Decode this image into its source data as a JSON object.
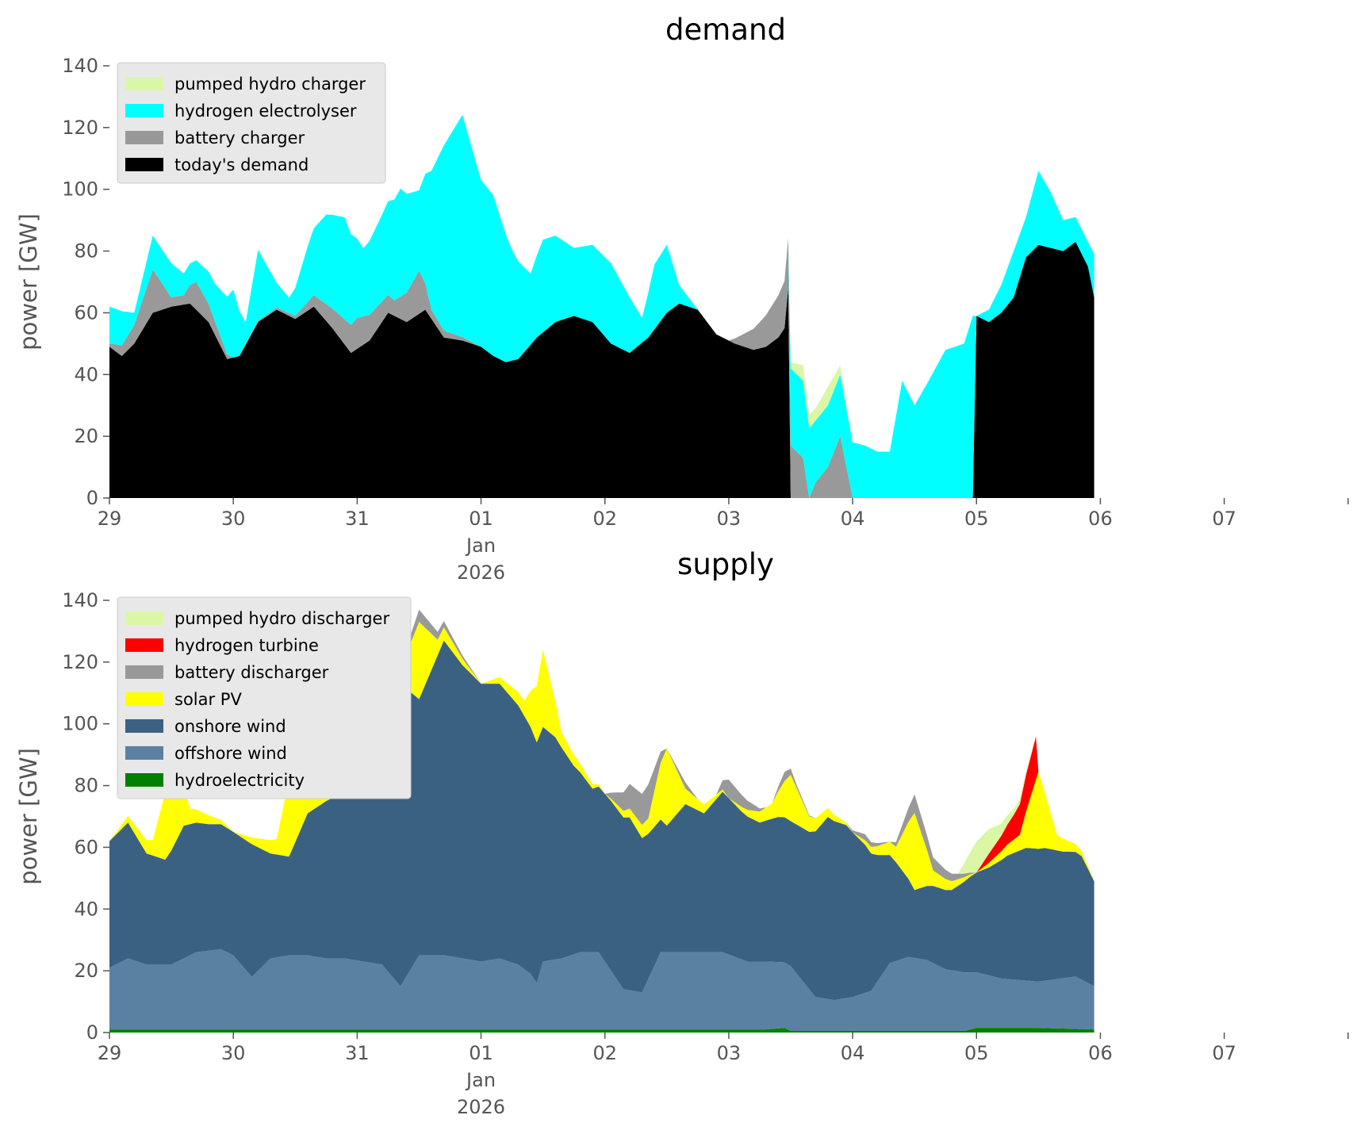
{
  "colors": {
    "pumped_hydro": "#daf7a6",
    "hydrogen_electrolyser": "#00ffff",
    "hydrogen_turbine": "#ff0000",
    "battery": "#999999",
    "demand": "#000000",
    "solar": "#ffff00",
    "onshore": "#3b6182",
    "offshore": "#5b81a2",
    "hydro": "#008000",
    "legend_bg": "#e8e8e8"
  },
  "x_tick_labels": [
    "29",
    "30",
    "31",
    "01",
    "02",
    "03",
    "04",
    "05",
    "06",
    "07"
  ],
  "x_tick_sublabels": {
    "month": "Jan",
    "year": "2026"
  },
  "chart_data": [
    {
      "type": "area",
      "title": "demand",
      "ylabel": "power [GW]",
      "xlabel": "",
      "ylim": [
        0,
        140
      ],
      "yticks": [
        0,
        20,
        40,
        60,
        80,
        100,
        120,
        140
      ],
      "xlim_days": [
        0,
        9.95
      ],
      "x_unit": "days from 29 Dec 2025",
      "grid": false,
      "legend_position": "top-left",
      "stacked": true,
      "series": [
        {
          "name": "pumped hydro charger",
          "x": [
            5.48,
            5.5,
            5.6,
            5.7,
            5.8,
            5.9,
            6.0
          ],
          "values": [
            0,
            2,
            5,
            4,
            6,
            3,
            0
          ]
        },
        {
          "name": "hydrogen electrolyser",
          "x": [
            0,
            0.1,
            0.2,
            0.35,
            0.5,
            0.6,
            0.7,
            0.85,
            1.0,
            1.1,
            1.2,
            1.35,
            1.45,
            1.5,
            1.6,
            1.75,
            1.9,
            2.05,
            2.2,
            2.35,
            2.5,
            2.6,
            2.7,
            2.85,
            3.0,
            3.1,
            3.25,
            3.4,
            3.5,
            3.6,
            3.75,
            3.9,
            4.05,
            4.2,
            4.3,
            4.4,
            4.5,
            4.6,
            4.75,
            4.9,
            5.05,
            5.2,
            5.4,
            5.48,
            5.5,
            5.6,
            5.7,
            5.8,
            5.9,
            6.0,
            6.1,
            6.2,
            6.3,
            6.4,
            6.5,
            6.6,
            6.75,
            6.9,
            6.97,
            7.0,
            7.1,
            7.2,
            7.3,
            7.4,
            7.5,
            7.6,
            7.7,
            7.8,
            7.9,
            7.95
          ],
          "values": [
            12,
            11,
            4,
            11,
            11,
            7,
            7,
            12,
            22,
            7,
            23,
            8,
            5,
            9,
            18,
            29,
            33,
            22,
            28,
            35,
            26,
            45,
            60,
            72,
            54,
            52,
            36,
            23,
            30,
            28,
            22,
            25,
            26,
            18,
            8,
            21,
            22,
            6,
            0,
            0,
            0,
            0,
            0,
            0,
            25,
            25,
            20,
            20,
            20,
            18,
            17,
            15,
            15,
            38,
            30,
            37,
            48,
            50,
            59,
            0,
            4,
            9,
            15,
            13,
            24,
            18,
            10,
            8,
            8,
            14
          ]
        },
        {
          "name": "battery charger",
          "x": [
            0,
            0.2,
            0.35,
            0.5,
            0.6,
            0.7,
            1.0,
            1.5,
            2.0,
            2.3,
            2.5,
            2.6,
            3.0,
            3.5,
            4.0,
            5.0,
            5.5,
            5.6,
            5.65,
            5.7,
            5.8,
            5.9,
            6.0,
            6.5,
            7.0,
            7.95
          ],
          "values": [
            1,
            6,
            14,
            3,
            3,
            9,
            0,
            1,
            10,
            5,
            14,
            3,
            0,
            0,
            0,
            0,
            17,
            13,
            0,
            5,
            10,
            20,
            0,
            0,
            0,
            0
          ]
        },
        {
          "name": "today's demand",
          "x": [
            0,
            0.1,
            0.2,
            0.35,
            0.5,
            0.65,
            0.8,
            0.95,
            1.05,
            1.2,
            1.35,
            1.5,
            1.65,
            1.8,
            1.95,
            2.1,
            2.25,
            2.4,
            2.55,
            2.7,
            2.85,
            3.0,
            3.1,
            3.2,
            3.3,
            3.45,
            3.6,
            3.75,
            3.9,
            4.05,
            4.2,
            4.35,
            4.5,
            4.6,
            4.75,
            4.9,
            5.05,
            5.2,
            5.3,
            5.4,
            5.45,
            5.48,
            5.5,
            5.6,
            5.7,
            5.8,
            5.9,
            6.0,
            6.5,
            6.9,
            6.97,
            7.0,
            7.1,
            7.2,
            7.3,
            7.4,
            7.5,
            7.6,
            7.7,
            7.8,
            7.9,
            7.95
          ],
          "values": [
            49,
            46,
            50,
            60,
            62,
            63,
            57,
            45,
            46,
            57,
            61,
            58,
            62,
            55,
            47,
            51,
            60,
            57,
            61,
            52,
            51,
            49,
            46,
            44,
            45,
            52,
            57,
            59,
            57,
            50,
            47,
            52,
            60,
            63,
            61,
            53,
            50,
            48,
            49,
            52,
            55,
            68,
            0,
            0,
            0,
            0,
            0,
            0,
            0,
            0,
            0,
            59,
            57,
            60,
            65,
            78,
            82,
            81,
            80,
            83,
            75,
            65
          ]
        }
      ]
    },
    {
      "type": "area",
      "title": "supply",
      "ylabel": "power [GW]",
      "xlabel": "",
      "ylim": [
        0,
        140
      ],
      "yticks": [
        0,
        20,
        40,
        60,
        80,
        100,
        120,
        140
      ],
      "xlim_days": [
        0,
        9.95
      ],
      "x_unit": "days from 29 Dec 2025",
      "grid": false,
      "legend_position": "top-left",
      "stacked": true,
      "series": [
        {
          "name": "hydroelectricity",
          "x": [
            0,
            1,
            2,
            3,
            4,
            5,
            5.3,
            5.45,
            5.5,
            6,
            6.9,
            7.0,
            7.5,
            7.95
          ],
          "values": [
            1,
            1,
            1,
            1,
            1,
            1,
            1,
            1.5,
            0.5,
            0.5,
            0.5,
            1.5,
            1.5,
            1
          ]
        },
        {
          "name": "offshore wind",
          "x": [
            0,
            0.15,
            0.3,
            0.5,
            0.7,
            0.9,
            1.0,
            1.15,
            1.3,
            1.45,
            1.6,
            1.75,
            1.9,
            2.05,
            2.2,
            2.35,
            2.5,
            2.7,
            2.85,
            3.0,
            3.15,
            3.3,
            3.4,
            3.45,
            3.5,
            3.65,
            3.8,
            3.95,
            4.15,
            4.3,
            4.45,
            4.6,
            4.75,
            4.95,
            5.15,
            5.3,
            5.5,
            5.7,
            5.85,
            6.0,
            6.15,
            6.3,
            6.45,
            6.6,
            6.75,
            6.9,
            7.0,
            7.2,
            7.5,
            7.8,
            7.95
          ],
          "values": [
            20,
            23,
            21,
            21,
            25,
            26,
            24,
            17,
            23,
            24,
            24,
            23,
            23,
            22,
            21,
            14,
            24,
            24,
            23,
            22,
            23,
            21,
            18,
            15,
            22,
            23,
            25,
            25,
            13,
            12,
            25,
            25,
            25,
            25,
            22,
            22,
            21,
            11,
            10,
            11,
            13,
            22,
            24,
            23,
            20,
            19,
            18,
            16,
            15,
            17,
            14
          ]
        },
        {
          "name": "onshore wind",
          "x": [
            0,
            0.15,
            0.3,
            0.45,
            0.6,
            0.8,
            1.0,
            1.15,
            1.3,
            1.45,
            1.6,
            1.75,
            1.9,
            2.05,
            2.2,
            2.35,
            2.5,
            2.7,
            2.85,
            3.0,
            3.15,
            3.3,
            3.45,
            3.6,
            3.75,
            3.9,
            4.05,
            4.2,
            4.35,
            4.5,
            4.65,
            4.8,
            4.95,
            5.1,
            5.25,
            5.4,
            5.5,
            5.65,
            5.8,
            5.95,
            6.1,
            6.2,
            6.35,
            6.5,
            6.65,
            6.8,
            6.95,
            7.1,
            7.25,
            7.4,
            7.55,
            7.7,
            7.85,
            7.95
          ],
          "values": [
            41,
            44,
            36,
            34,
            43,
            41,
            40,
            43,
            34,
            32,
            46,
            51,
            54,
            60,
            82,
            98,
            83,
            102,
            95,
            90,
            89,
            84,
            78,
            72,
            61,
            53,
            55,
            56,
            47,
            41,
            48,
            45,
            52,
            48,
            45,
            47,
            47,
            51,
            59,
            56,
            48,
            41,
            32,
            22,
            25,
            26,
            31,
            35,
            40,
            43,
            43,
            41,
            40,
            34
          ]
        },
        {
          "name": "solar PV",
          "x": [
            0,
            0.35,
            0.5,
            0.65,
            1.0,
            1.35,
            1.5,
            1.65,
            2.0,
            2.35,
            2.5,
            2.65,
            3.0,
            3.35,
            3.5,
            3.65,
            4.0,
            4.35,
            4.5,
            4.65,
            5.0,
            5.35,
            5.5,
            5.65,
            6.0,
            6.35,
            6.5,
            6.65,
            7.0,
            7.35,
            7.5,
            7.65,
            7.95
          ],
          "values": [
            0,
            5,
            30,
            5,
            0,
            5,
            35,
            5,
            0,
            5,
            25,
            5,
            0,
            5,
            25,
            5,
            0,
            5,
            25,
            5,
            0,
            5,
            15,
            5,
            0,
            5,
            25,
            5,
            0,
            5,
            25,
            5,
            0
          ]
        },
        {
          "name": "battery discharger",
          "x": [
            0,
            1.6,
            1.75,
            2.0,
            2.1,
            2.2,
            2.3,
            2.5,
            2.7,
            3.0,
            3.1,
            3.2,
            3.5,
            4.0,
            4.2,
            4.35,
            4.5,
            4.65,
            4.75,
            4.9,
            5.0,
            5.1,
            5.2,
            5.3,
            5.35,
            5.45,
            5.55,
            5.7,
            5.95,
            6.1,
            6.3,
            6.5,
            7.0,
            7.95
          ],
          "values": [
            0,
            0,
            4,
            3,
            2,
            0,
            0,
            4,
            2,
            0,
            0,
            0,
            0,
            0,
            8,
            11,
            0,
            2,
            0,
            0,
            6,
            4,
            2,
            0,
            0,
            3,
            1,
            0,
            0,
            2,
            0,
            6,
            0,
            0
          ]
        },
        {
          "name": "hydrogen turbine",
          "x": [
            0,
            7.0,
            7.1,
            7.2,
            7.3,
            7.4,
            7.48,
            7.5,
            7.95
          ],
          "values": [
            0,
            0,
            3,
            5,
            8,
            12,
            14,
            0,
            0
          ]
        },
        {
          "name": "pumped hydro discharger",
          "x": [
            0,
            6.85,
            7.0,
            7.1,
            7.2,
            7.3,
            7.4,
            7.5,
            7.95
          ],
          "values": [
            0,
            0,
            10,
            8,
            4,
            2,
            1,
            0,
            0
          ]
        }
      ]
    }
  ]
}
